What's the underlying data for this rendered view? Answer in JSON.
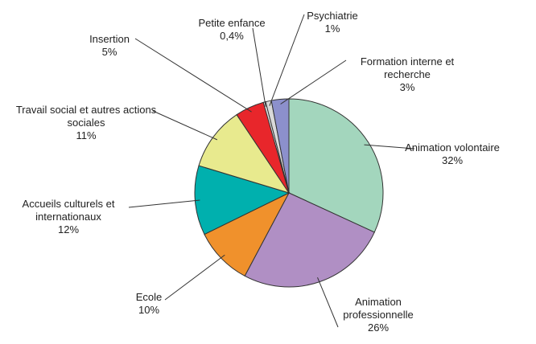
{
  "chart_data": {
    "type": "pie",
    "categories": [
      "Animation volontaire",
      "Animation professionnelle",
      "Ecole",
      "Accueils culturels et internationaux",
      "Travail social et autres actions sociales",
      "Insertion",
      "Petite enfance",
      "Psychiatrie",
      "Formation interne et recherche"
    ],
    "values": [
      32,
      26,
      10,
      12,
      11,
      5,
      0.4,
      1,
      3
    ],
    "value_labels": [
      "32%",
      "26%",
      "10%",
      "12%",
      "11%",
      "5%",
      "0,4%",
      "1%",
      "3%"
    ],
    "colors": [
      "#a3d6bd",
      "#b08fc4",
      "#f0912c",
      "#00b0ae",
      "#e8ea8e",
      "#e8262b",
      "#e6e6e6",
      "#d9d9d9",
      "#8c90cc"
    ]
  }
}
